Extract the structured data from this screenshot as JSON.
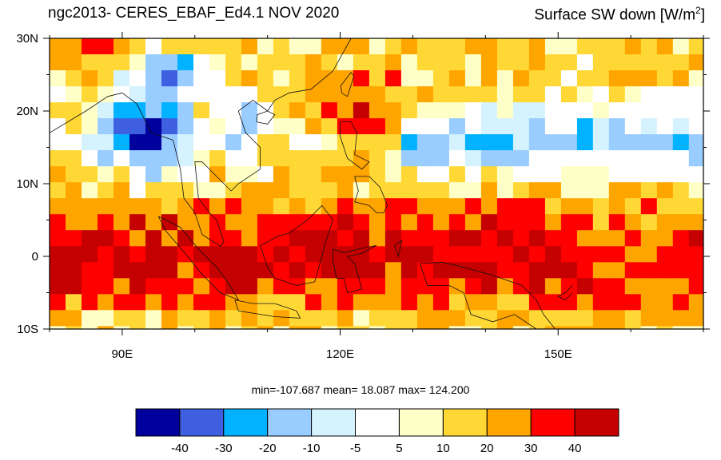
{
  "title": {
    "left": "ngc2013- CERES_EBAF_Ed4.1  NOV 2020",
    "right_prefix": "Surface SW down [W/m",
    "right_sup": "2",
    "right_suffix": "]"
  },
  "map": {
    "lon_range": [
      80,
      170
    ],
    "lat_range": [
      -10,
      30
    ],
    "lat_ticks": [
      {
        "value": 30,
        "label": "30N"
      },
      {
        "value": 20,
        "label": "20N"
      },
      {
        "value": 10,
        "label": "10N"
      },
      {
        "value": 0,
        "label": "0"
      },
      {
        "value": -10,
        "label": "10S"
      }
    ],
    "lon_ticks": [
      {
        "value": 90,
        "label": "90E"
      },
      {
        "value": 120,
        "label": "120E"
      },
      {
        "value": 150,
        "label": "150E"
      }
    ]
  },
  "stats": "min=-107.687  mean=  18.087  max= 124.200",
  "colorbar": {
    "colors": [
      "#00009c",
      "#3d5fe0",
      "#00b2ff",
      "#99ccff",
      "#d5f2ff",
      "#ffffff",
      "#ffffc8",
      "#ffd835",
      "#ffa500",
      "#ff0000",
      "#c40000"
    ],
    "labels": [
      "-40",
      "-30",
      "-20",
      "-10",
      "-5",
      "5",
      "10",
      "20",
      "30",
      "40"
    ]
  }
}
